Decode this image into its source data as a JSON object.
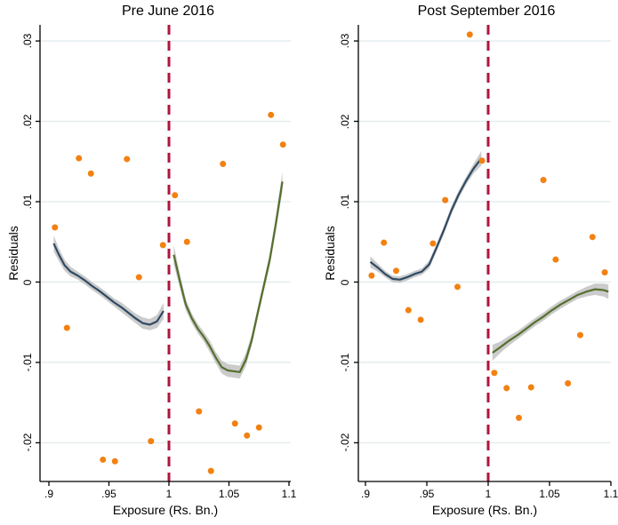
{
  "figure": {
    "colors": {
      "background": "#ffffff",
      "axis": "#000000",
      "grid": "#e2ecee",
      "scatter": "#f28111",
      "fit_navy": "#2f4a63",
      "fit_green": "#566f2d",
      "ci_band": "rgba(168,168,168,0.6)",
      "cutoff": "#b0143c"
    }
  },
  "chart_data": [
    {
      "type": "scatter",
      "title": "Pre June 2016",
      "xlabel": "Exposure (Rs. Bn.)",
      "ylabel": "Residuals",
      "legend": "none",
      "grid": "horizontal",
      "xlim": [
        0.893,
        1.102
      ],
      "ylim": [
        -0.0248,
        0.032
      ],
      "cutoff_x": 1,
      "xticks": [
        {
          "label": ".9",
          "value": 0.9
        },
        {
          "label": ".95",
          "value": 0.95
        },
        {
          "label": "1",
          "value": 1
        },
        {
          "label": "1.05",
          "value": 1.05
        },
        {
          "label": "1.1",
          "value": 1.1
        }
      ],
      "yticks": [
        {
          "label": ".03",
          "value": 0.03
        },
        {
          "label": ".02",
          "value": 0.02
        },
        {
          "label": ".01",
          "value": 0.01
        },
        {
          "label": "0",
          "value": 0
        },
        {
          "label": "-.01",
          "value": -0.01
        },
        {
          "label": "-.02",
          "value": -0.02
        }
      ],
      "scatter": [
        [
          0.905,
          0.0068
        ],
        [
          0.915,
          -0.0057
        ],
        [
          0.925,
          0.0154
        ],
        [
          0.935,
          0.0135
        ],
        [
          0.945,
          -0.0221
        ],
        [
          0.955,
          -0.0223
        ],
        [
          0.965,
          0.0153
        ],
        [
          0.975,
          0.0006
        ],
        [
          0.985,
          -0.0198
        ],
        [
          0.995,
          0.0046
        ],
        [
          1.005,
          0.0108
        ],
        [
          1.015,
          0.005
        ],
        [
          1.025,
          -0.0161
        ],
        [
          1.035,
          -0.0235
        ],
        [
          1.045,
          0.0147
        ],
        [
          1.055,
          -0.0176
        ],
        [
          1.065,
          -0.0191
        ],
        [
          1.075,
          -0.0181
        ],
        [
          1.085,
          0.0208
        ],
        [
          1.095,
          0.0171
        ]
      ],
      "fits": [
        {
          "name": "pre-cutoff-fit",
          "color_key": "fit_navy",
          "x": [
            0.904,
            0.908,
            0.913,
            0.918,
            0.924,
            0.93,
            0.936,
            0.942,
            0.948,
            0.954,
            0.96,
            0.966,
            0.972,
            0.978,
            0.984,
            0.99,
            0.9955
          ],
          "y": [
            0.0048,
            0.0035,
            0.0021,
            0.0013,
            0.0008,
            0.0002,
            -0.0005,
            -0.0011,
            -0.0018,
            -0.0025,
            -0.0031,
            -0.0038,
            -0.0045,
            -0.0051,
            -0.0053,
            -0.0049,
            -0.0036
          ],
          "band": [
            0.001,
            0.0008,
            0.0007,
            0.0006,
            0.0005,
            0.0005,
            0.0005,
            0.0005,
            0.0005,
            0.0005,
            0.0006,
            0.0006,
            0.0006,
            0.0007,
            0.0007,
            0.0008,
            0.001
          ]
        },
        {
          "name": "post-cutoff-fit",
          "color_key": "fit_green",
          "x": [
            1.004,
            1.009,
            1.014,
            1.019,
            1.024,
            1.029,
            1.034,
            1.039,
            1.044,
            1.049,
            1.054,
            1.059,
            1.064,
            1.069,
            1.074,
            1.079,
            1.084,
            1.089,
            1.0945
          ],
          "y": [
            0.0034,
            0.0002,
            -0.0028,
            -0.0045,
            -0.0058,
            -0.0068,
            -0.008,
            -0.0094,
            -0.0106,
            -0.011,
            -0.0111,
            -0.0112,
            -0.0097,
            -0.0072,
            -0.0038,
            -0.0005,
            0.0028,
            0.0072,
            0.0125
          ],
          "band": [
            0.0012,
            0.0009,
            0.0007,
            0.0006,
            0.0006,
            0.0006,
            0.0007,
            0.0007,
            0.0008,
            0.0008,
            0.0008,
            0.0008,
            0.0008,
            0.0007,
            0.0007,
            0.0007,
            0.0008,
            0.0009,
            0.0012
          ]
        }
      ]
    },
    {
      "type": "scatter",
      "title": "Post September 2016",
      "xlabel": "Exposure (Rs. Bn.)",
      "ylabel": "Residuals",
      "legend": "none",
      "grid": "horizontal",
      "xlim": [
        0.894,
        1.102
      ],
      "ylim": [
        -0.0248,
        0.032
      ],
      "cutoff_x": 1,
      "xticks": [
        {
          "label": ".9",
          "value": 0.9
        },
        {
          "label": ".95",
          "value": 0.95
        },
        {
          "label": "1",
          "value": 1
        },
        {
          "label": "1.05",
          "value": 1.05
        },
        {
          "label": "1.1",
          "value": 1.1
        }
      ],
      "yticks": [
        {
          "label": ".03",
          "value": 0.03
        },
        {
          "label": ".02",
          "value": 0.02
        },
        {
          "label": ".01",
          "value": 0.01
        },
        {
          "label": "0",
          "value": 0
        },
        {
          "label": "-.01",
          "value": -0.01
        },
        {
          "label": "-.02",
          "value": -0.02
        }
      ],
      "scatter": [
        [
          0.905,
          0.0008
        ],
        [
          0.915,
          0.0049
        ],
        [
          0.925,
          0.0014
        ],
        [
          0.935,
          -0.0035
        ],
        [
          0.945,
          -0.0047
        ],
        [
          0.955,
          0.0048
        ],
        [
          0.965,
          0.0102
        ],
        [
          0.975,
          -0.0006
        ],
        [
          0.985,
          0.0308
        ],
        [
          0.995,
          0.0151
        ],
        [
          1.005,
          -0.0113
        ],
        [
          1.015,
          -0.0132
        ],
        [
          1.025,
          -0.0169
        ],
        [
          1.035,
          -0.0131
        ],
        [
          1.045,
          0.0127
        ],
        [
          1.055,
          0.0028
        ],
        [
          1.065,
          -0.0126
        ],
        [
          1.075,
          -0.0066
        ],
        [
          1.085,
          0.0056
        ],
        [
          1.095,
          0.0012
        ]
      ],
      "fits": [
        {
          "name": "pre-cutoff-fit",
          "color_key": "fit_navy",
          "x": [
            0.904,
            0.91,
            0.916,
            0.922,
            0.928,
            0.934,
            0.94,
            0.946,
            0.952,
            0.958,
            0.964,
            0.97,
            0.976,
            0.982,
            0.988,
            0.9945
          ],
          "y": [
            0.0025,
            0.0018,
            0.001,
            0.0004,
            0.0003,
            0.0006,
            0.001,
            0.0013,
            0.0022,
            0.0043,
            0.0065,
            0.0089,
            0.0109,
            0.0126,
            0.0141,
            0.0154
          ],
          "band": [
            0.0007,
            0.0005,
            0.0004,
            0.0004,
            0.0004,
            0.0004,
            0.0004,
            0.0004,
            0.0005,
            0.0005,
            0.0005,
            0.0005,
            0.0005,
            0.0005,
            0.0006,
            0.0009
          ]
        },
        {
          "name": "post-cutoff-fit",
          "color_key": "fit_green",
          "x": [
            1.0035,
            1.01,
            1.017,
            1.024,
            1.031,
            1.038,
            1.045,
            1.052,
            1.059,
            1.066,
            1.073,
            1.08,
            1.087,
            1.094,
            1.098
          ],
          "y": [
            -0.0088,
            -0.0081,
            -0.0073,
            -0.0066,
            -0.0058,
            -0.005,
            -0.0043,
            -0.0035,
            -0.0028,
            -0.0022,
            -0.0016,
            -0.0012,
            -0.0009,
            -0.001,
            -0.0012
          ],
          "band": [
            0.001,
            0.0007,
            0.0006,
            0.0005,
            0.0005,
            0.0005,
            0.0005,
            0.0005,
            0.0005,
            0.0005,
            0.0005,
            0.0006,
            0.0007,
            0.0008,
            0.0009
          ]
        }
      ]
    }
  ]
}
